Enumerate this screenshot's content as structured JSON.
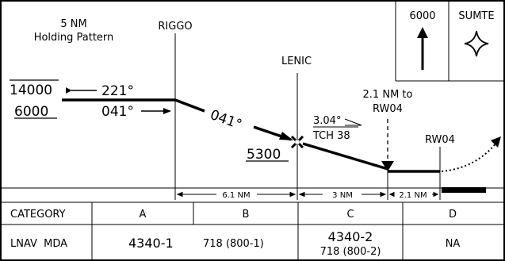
{
  "profile": {
    "holding": {
      "line1": "5 NM",
      "line2": "Holding Pattern"
    },
    "fixes": {
      "riggo": "RIGGO",
      "lenic": "LENIC",
      "rw04": "RW04"
    },
    "altitudes": {
      "top": "14000",
      "bottom": "6000",
      "lenic": "5300"
    },
    "courses": {
      "outbound": "221°",
      "inbound": "041°",
      "descent": "041°"
    },
    "vdp": {
      "line1": "2.1 NM to",
      "line2": "RW04"
    },
    "glidepath": {
      "angle": "3.04°",
      "tch": "TCH 38"
    },
    "missed_box": {
      "altitude": "6000",
      "fix": "SUMTE"
    },
    "distances": [
      "6.1 NM",
      "3 NM",
      "2.1 NM"
    ]
  },
  "minima": {
    "headers": {
      "category": "CATEGORY",
      "a": "A",
      "b": "B",
      "c": "C",
      "d": "D"
    },
    "lnav": {
      "label": "LNAV  MDA",
      "ab_main": "4340-1",
      "ab_sub": "718 (800-1)",
      "c_main": "4340-2",
      "c_sub": "718 (800-2)",
      "d": "NA"
    }
  }
}
